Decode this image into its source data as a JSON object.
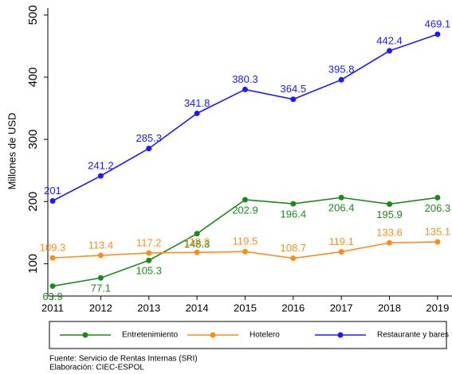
{
  "chart_data": {
    "type": "line",
    "y_label": "Millones de USD",
    "x": [
      2011,
      2012,
      2013,
      2014,
      2015,
      2016,
      2017,
      2018,
      2019
    ],
    "xlim": [
      2010.9,
      2019.3
    ],
    "xticks": [
      2011,
      2012,
      2013,
      2014,
      2015,
      2016,
      2017,
      2018,
      2019
    ],
    "ylim": [
      48,
      505
    ],
    "yticks": [
      100,
      200,
      300,
      400,
      500
    ],
    "grid": false,
    "legend": "bottom",
    "series": [
      {
        "name": "Entretenimiento",
        "color": "#1a8a1a",
        "label_side": "below",
        "values": [
          63.9,
          77.1,
          105.3,
          148.3,
          202.9,
          196.4,
          206.4,
          195.9,
          206.3
        ]
      },
      {
        "name": "Hotelero",
        "color": "#ff8c1a",
        "label_side": "above",
        "values": [
          109.3,
          113.4,
          117.2,
          118.2,
          119.5,
          108.7,
          119.1,
          133.6,
          135.1
        ]
      },
      {
        "name": "Restaurante y bares",
        "color": "#1a1aff",
        "label_side": "above",
        "values": [
          201,
          241.2,
          285.3,
          341.8,
          380.3,
          364.5,
          395.8,
          442.4,
          469.1
        ]
      }
    ],
    "source": "Fuente: Servicio de Rentas Internas (SRI)",
    "credit": "Elaboración: CIEC-ESPOL"
  }
}
